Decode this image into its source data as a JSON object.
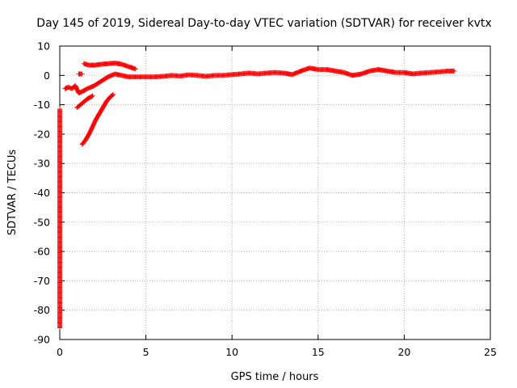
{
  "chart_data": {
    "type": "scatter",
    "title": "Day 145 of 2019, Sidereal Day-to-day VTEC variation (SDTVAR) for receiver kvtx",
    "xlabel": "GPS time / hours",
    "ylabel": "SDTVAR / TECUs",
    "xlim": [
      0,
      25
    ],
    "ylim": [
      -90,
      10
    ],
    "x_ticks": [
      "0",
      "5",
      "10",
      "15",
      "20",
      "25"
    ],
    "y_ticks": [
      "10",
      "0",
      "-10",
      "-20",
      "-30",
      "-40",
      "-50",
      "-60",
      "-70",
      "-80",
      "-90"
    ],
    "grid": true,
    "marker": "plus",
    "marker_color": "#ff0000",
    "series": [
      {
        "x": [
          0.3,
          0.5,
          0.7,
          0.9,
          1.1,
          1.3,
          1.6,
          2.0,
          2.4,
          2.8,
          3.2,
          3.6,
          4.0,
          4.5,
          5.0,
          5.5,
          6.0,
          6.5,
          7.0,
          7.5,
          8.0,
          8.5,
          9.0,
          9.5,
          10.0,
          10.5,
          11.0,
          11.5,
          12.0,
          12.5,
          13.0,
          13.5,
          14.0,
          14.5,
          15.0,
          15.5,
          16.0,
          16.5,
          17.0,
          17.5,
          18.0,
          18.5,
          19.0,
          19.5,
          20.0,
          20.5,
          21.0,
          21.5,
          22.0,
          22.5,
          22.9
        ],
        "y": [
          -4.5,
          -4.0,
          -4.5,
          -3.5,
          -6.0,
          -5.5,
          -4.5,
          -3.5,
          -2.0,
          -0.5,
          0.5,
          0.0,
          -0.5,
          -0.5,
          -0.5,
          -0.5,
          -0.3,
          0.0,
          -0.2,
          0.2,
          0.0,
          -0.3,
          0.0,
          0.0,
          0.3,
          0.5,
          0.8,
          0.5,
          0.8,
          1.0,
          0.8,
          0.3,
          1.5,
          2.5,
          2.0,
          2.0,
          1.5,
          1.0,
          0.0,
          0.5,
          1.5,
          2.0,
          1.5,
          1.0,
          1.0,
          0.5,
          0.8,
          1.0,
          1.2,
          1.5,
          1.5
        ]
      },
      {
        "x": [
          1.4,
          1.7,
          2.0,
          2.4,
          2.8,
          3.2,
          3.6,
          4.0,
          4.4
        ],
        "y": [
          4.0,
          3.5,
          3.5,
          3.8,
          4.0,
          4.2,
          3.8,
          3.0,
          2.2
        ]
      },
      {
        "x": [
          1.1,
          1.3
        ],
        "y": [
          0.5,
          0.5
        ]
      },
      {
        "x": [
          1.3,
          1.5,
          1.7,
          1.9,
          2.1,
          2.3,
          2.5,
          2.7,
          2.9,
          3.1
        ],
        "y": [
          -23.5,
          -22.0,
          -20.0,
          -17.5,
          -15.0,
          -13.0,
          -11.0,
          -9.0,
          -7.5,
          -6.5
        ]
      },
      {
        "x": [
          1.0,
          1.3,
          1.6,
          1.9
        ],
        "y": [
          -11.0,
          -9.5,
          -8.0,
          -7.0
        ]
      },
      {
        "x": [
          0.0,
          0.0,
          0.0
        ],
        "y": [
          -11.5,
          -44.0,
          -86.0
        ]
      }
    ]
  }
}
